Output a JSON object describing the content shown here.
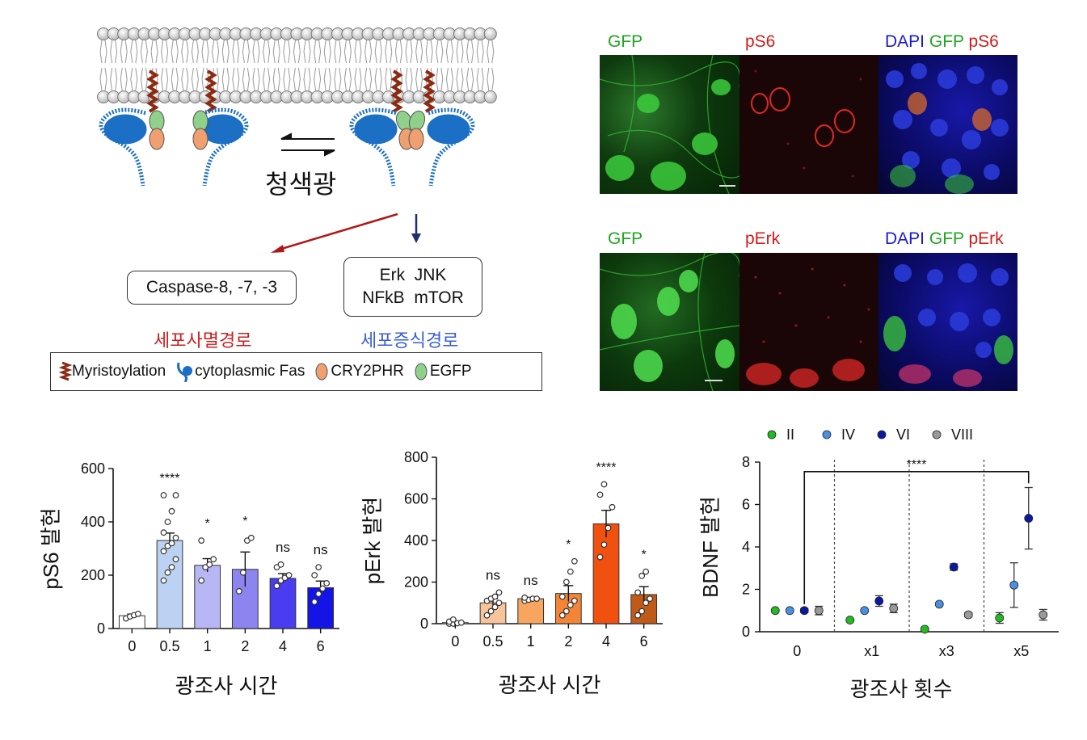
{
  "schematic": {
    "light_label": "청색광",
    "box_apoptosis": "Caspase-8, -7, -3",
    "box_survival_line1": "Erk  JNK",
    "box_survival_line2": "NFkB  mTOR",
    "pathway_death": "세포사멸경로",
    "pathway_survival": "세포증식경로",
    "legend": [
      {
        "icon": "myristoylation-icon",
        "label": "Myristoylation",
        "color": "#8b2a12"
      },
      {
        "icon": "cytoplasmic-fas-icon",
        "label": "cytoplasmic Fas",
        "color": "#1b6fc4"
      },
      {
        "icon": "cry2phr-icon",
        "label": "CRY2PHR",
        "color": "#f0a070"
      },
      {
        "icon": "egfp-icon",
        "label": "EGFP",
        "color": "#8fd08a"
      }
    ],
    "colors": {
      "death": "#cc1f1f",
      "survival": "#3a5fd0",
      "arrow_death": "#b01818",
      "arrow_survival": "#1f2f6a"
    }
  },
  "micrographs": {
    "row1": {
      "left": "GFP",
      "middle": "pS6",
      "right_dapi": "DAPI",
      "right_gfp": "GFP",
      "right_marker": "pS6"
    },
    "row2": {
      "left": "GFP",
      "middle": "pErk",
      "right_dapi": "DAPI",
      "right_gfp": "GFP",
      "right_marker": "pErk"
    },
    "colors": {
      "gfp": "#1fa51f",
      "marker": "#d11a1a",
      "dapi": "#1a1ad1"
    }
  },
  "chart_data": [
    {
      "type": "bar",
      "ylabel": "pS6 발현",
      "xlabel": "광조사 시간",
      "categories": [
        "0",
        "0.5",
        "1",
        "2",
        "4",
        "6"
      ],
      "values": [
        48,
        330,
        237,
        222,
        188,
        153
      ],
      "errors": [
        6,
        28,
        25,
        65,
        18,
        25
      ],
      "significance": [
        "",
        "****",
        "*",
        "*",
        "ns",
        "ns"
      ],
      "points": [
        [
          38,
          45,
          50,
          55
        ],
        [
          180,
          210,
          230,
          260,
          290,
          310,
          320,
          340,
          360,
          400,
          440,
          500,
          500
        ],
        [
          180,
          230,
          240,
          260,
          330
        ],
        [
          140,
          210,
          330,
          340
        ],
        [
          160,
          180,
          190,
          200,
          230,
          240
        ],
        [
          100,
          130,
          150,
          170,
          200,
          230
        ]
      ],
      "bar_colors": [
        "#ffffff",
        "#bcd2f2",
        "#b9b6f5",
        "#8c85f0",
        "#4a3cf0",
        "#1414e6"
      ],
      "ylim": [
        0,
        600
      ],
      "yticks": [
        0,
        200,
        400,
        600
      ]
    },
    {
      "type": "bar",
      "ylabel": "pErk 발현",
      "xlabel": "광조사 시간",
      "categories": [
        "0",
        "0.5",
        "1",
        "2",
        "4",
        "6"
      ],
      "values": [
        5,
        100,
        120,
        145,
        480,
        140
      ],
      "errors": [
        3,
        20,
        5,
        38,
        65,
        38
      ],
      "significance": [
        "",
        "ns",
        "ns",
        "*",
        "****",
        "*"
      ],
      "points": [
        [
          0,
          0,
          2,
          5,
          10,
          20
        ],
        [
          40,
          60,
          80,
          100,
          110,
          120,
          130,
          150
        ],
        [
          110,
          115,
          120,
          120,
          125
        ],
        [
          40,
          60,
          90,
          110,
          130,
          200,
          250,
          300
        ],
        [
          320,
          380,
          460,
          560,
          620,
          670
        ],
        [
          40,
          60,
          100,
          120,
          150,
          230,
          250
        ]
      ],
      "bar_colors": [
        "#ffffff",
        "#f8c59a",
        "#f8a560",
        "#f58536",
        "#f05010",
        "#c05a18"
      ],
      "ylim": [
        0,
        800
      ],
      "yticks": [
        0,
        200,
        400,
        600,
        800
      ]
    },
    {
      "type": "scatter",
      "ylabel": "BDNF 발현",
      "xlabel": "광조사 횟수",
      "categories": [
        "0",
        "x1",
        "x3",
        "x5"
      ],
      "series": [
        {
          "name": "II",
          "color": "#22bb22",
          "values": [
            1.0,
            0.55,
            0.12,
            0.65
          ],
          "errors": [
            0,
            0,
            0,
            0.25
          ]
        },
        {
          "name": "IV",
          "color": "#4a90e2",
          "values": [
            1.0,
            1.0,
            1.3,
            2.2
          ],
          "errors": [
            0,
            0,
            0,
            1.05
          ]
        },
        {
          "name": "VI",
          "color": "#0a1aa0",
          "values": [
            1.0,
            1.45,
            3.05,
            5.35
          ],
          "errors": [
            0.1,
            0.25,
            0.15,
            1.45
          ]
        },
        {
          "name": "VIII",
          "color": "#999999",
          "values": [
            1.0,
            1.1,
            0.8,
            0.8
          ],
          "errors": [
            0.2,
            0.2,
            0.1,
            0.25
          ]
        }
      ],
      "significance": "****",
      "ylim": [
        0,
        8
      ],
      "yticks": [
        0,
        2,
        4,
        6,
        8
      ],
      "legend_position": "top"
    }
  ]
}
